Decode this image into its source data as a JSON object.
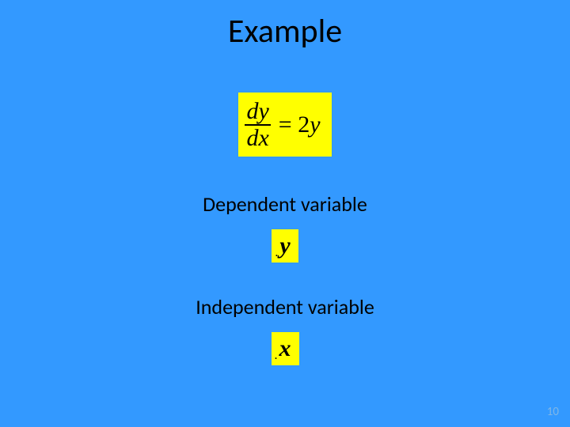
{
  "colors": {
    "background": "#3399ff",
    "highlight": "#ffff00",
    "text": "#000000",
    "pagenum": "#7eb6e8"
  },
  "title": "Example",
  "equation": {
    "numerator": "dy",
    "denominator": "dx",
    "equals": "=",
    "rhs_coeff": "2",
    "rhs_var": "y",
    "font_family": "Times New Roman",
    "font_size_pt": 30,
    "highlight_color": "#ffff00"
  },
  "dependent": {
    "label": "Dependent variable",
    "var": "y",
    "label_fontsize": 26
  },
  "independent": {
    "label": "Independent variable",
    "var": "x",
    "label_fontsize": 26
  },
  "page_number": "10"
}
